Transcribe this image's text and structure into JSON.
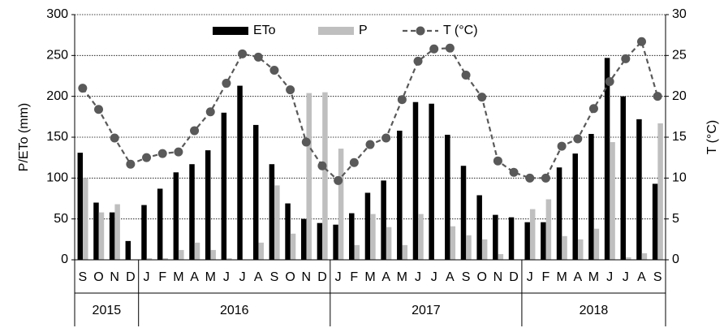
{
  "chart_data": {
    "type": "bar_line",
    "y_label": "P/ETo (mm)",
    "y2_label": "T (°C)",
    "groups": [
      {
        "label": "2015",
        "categories": [
          "S",
          "O",
          "N",
          "D"
        ]
      },
      {
        "label": "2016",
        "categories": [
          "J",
          "F",
          "M",
          "A",
          "M",
          "J",
          "J",
          "A",
          "S",
          "O",
          "N",
          "D"
        ]
      },
      {
        "label": "2017",
        "categories": [
          "J",
          "F",
          "M",
          "A",
          "M",
          "J",
          "J",
          "A",
          "S",
          "O",
          "N",
          "D"
        ]
      },
      {
        "label": "2018",
        "categories": [
          "J",
          "F",
          "M",
          "A",
          "M",
          "J",
          "J",
          "A",
          "S"
        ]
      }
    ],
    "series": [
      {
        "name": "ETo",
        "type": "bar",
        "color": "#000000",
        "values": [
          131,
          70,
          58,
          23,
          67,
          87,
          107,
          117,
          134,
          180,
          213,
          165,
          117,
          69,
          50,
          45,
          43,
          57,
          82,
          97,
          158,
          193,
          191,
          153,
          115,
          79,
          55,
          52,
          46,
          46,
          113,
          130,
          154,
          247,
          200,
          172,
          93
        ]
      },
      {
        "name": "P",
        "type": "bar",
        "color": "#bfbfbf",
        "values": [
          100,
          58,
          68,
          0,
          2,
          2,
          12,
          21,
          12,
          2,
          0,
          21,
          91,
          32,
          204,
          205,
          136,
          18,
          56,
          40,
          18,
          56,
          0,
          41,
          30,
          25,
          7,
          0,
          62,
          74,
          29,
          25,
          38,
          144,
          3,
          8,
          167
        ]
      },
      {
        "name": "T (°C)",
        "type": "line",
        "axis": "y2",
        "color": "#595959",
        "values": [
          21,
          18.4,
          14.9,
          11.7,
          12.5,
          13,
          13.2,
          15.8,
          18.1,
          21.6,
          25.2,
          24.8,
          23.2,
          20.8,
          14.4,
          11.5,
          9.7,
          11.9,
          14.1,
          14.9,
          19.6,
          24.3,
          25.8,
          25.9,
          22.6,
          19.9,
          12.1,
          10.7,
          10,
          10,
          13.9,
          14.8,
          18.5,
          21.8,
          24.6,
          26.7,
          20
        ]
      }
    ],
    "ylim": [
      0,
      300
    ],
    "yticks": [
      0,
      50,
      100,
      150,
      200,
      250,
      300
    ],
    "y2lim": [
      0,
      30
    ],
    "y2ticks": [
      0,
      5,
      10,
      15,
      20,
      25,
      30
    ],
    "grid": true,
    "legend": "top"
  }
}
